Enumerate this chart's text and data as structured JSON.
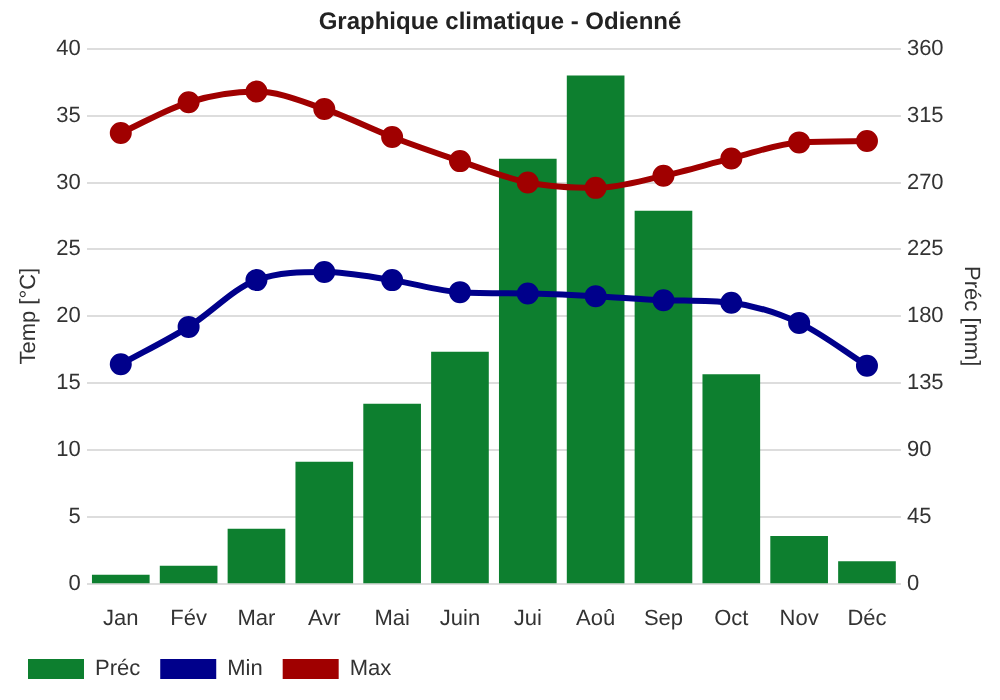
{
  "chart_data": {
    "type": "line",
    "title": "Graphique climatique - Odienné",
    "ylabel": "Temp [°C]",
    "y2label": "Préc [mm]",
    "categories": [
      "Jan",
      "Fév",
      "Mar",
      "Avr",
      "Mai",
      "Juin",
      "Jui",
      "Aoû",
      "Sep",
      "Oct",
      "Nov",
      "Déc"
    ],
    "series": [
      {
        "name": "Préc",
        "type": "bar",
        "axis": "y2",
        "color": "#0d7f2f",
        "values": [
          6,
          12,
          37,
          82,
          121,
          156,
          286,
          342,
          251,
          141,
          32,
          15
        ]
      },
      {
        "name": "Min",
        "color": "#00008b",
        "values": [
          16.4,
          19.2,
          22.7,
          23.3,
          22.7,
          21.8,
          21.7,
          21.5,
          21.2,
          21.0,
          19.5,
          16.3
        ]
      },
      {
        "name": "Max",
        "color": "#a00000",
        "values": [
          33.7,
          36.0,
          36.8,
          35.5,
          33.4,
          31.6,
          30.0,
          29.6,
          30.5,
          31.8,
          33.0,
          33.1
        ]
      }
    ],
    "ylim": [
      0,
      40
    ],
    "yticks": [
      0,
      5,
      10,
      15,
      20,
      25,
      30,
      35,
      40
    ],
    "y2lim": [
      0,
      360
    ],
    "y2ticks": [
      0,
      45,
      90,
      135,
      180,
      225,
      270,
      315,
      360
    ],
    "grid": "y",
    "legend": "bottom left",
    "marker": "circle",
    "line_style": "solid"
  }
}
